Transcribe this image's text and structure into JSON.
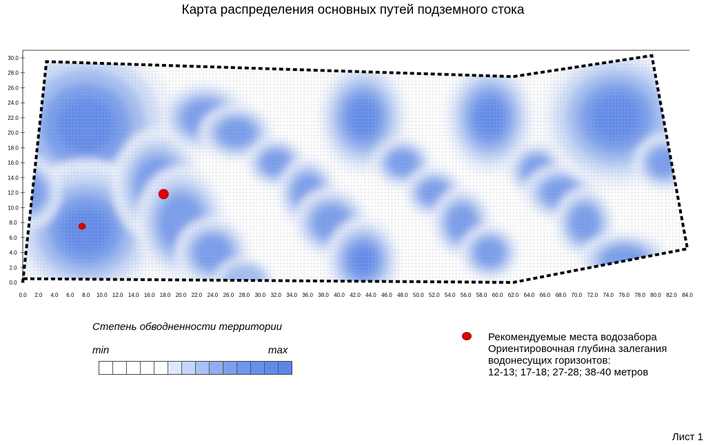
{
  "title": "Карта распределения основных путей подземного стока",
  "map": {
    "x_ticks": [
      "0.0",
      "2.0",
      "4.0",
      "6.0",
      "8.0",
      "10.0",
      "12.0",
      "14.0",
      "16.0",
      "18.0",
      "20.0",
      "22.0",
      "24.0",
      "26.0",
      "28.0",
      "30.0",
      "32.0",
      "34.0",
      "36.0",
      "38.0",
      "40.0",
      "42.0",
      "44.0",
      "46.0",
      "48.0",
      "50.0",
      "52.0",
      "54.0",
      "56.0",
      "58.0",
      "60.0",
      "62.0",
      "64.0",
      "66.0",
      "68.0",
      "70.0",
      "72.0",
      "74.0",
      "76.0",
      "78.0",
      "80.0",
      "82.0",
      "84.0"
    ],
    "y_ticks": [
      "0.0",
      "2.0",
      "4.0",
      "6.0",
      "8.0",
      "10.0",
      "12.0",
      "14.0",
      "16.0",
      "18.0",
      "20.0",
      "22.0",
      "24.0",
      "26.0",
      "28.0",
      "30.0"
    ],
    "x_range": [
      0,
      84
    ],
    "y_range": [
      0,
      30
    ],
    "boundary": [
      [
        0,
        0
      ],
      [
        3,
        29.5
      ],
      [
        62,
        27.5
      ],
      [
        79.5,
        30.3
      ],
      [
        84,
        4.5
      ],
      [
        62,
        0
      ],
      [
        0,
        0.5
      ]
    ],
    "wells": [
      {
        "x": 7.5,
        "y": 7.5,
        "size": "small"
      },
      {
        "x": 17.8,
        "y": 11.8,
        "size": "large"
      }
    ],
    "water_zones": [
      {
        "x": 8,
        "y": 21,
        "rx": 6,
        "ry": 6,
        "level": 4
      },
      {
        "x": 8,
        "y": 7,
        "rx": 5,
        "ry": 5,
        "level": 4
      },
      {
        "x": 1,
        "y": 12,
        "rx": 2,
        "ry": 2.5,
        "level": 3
      },
      {
        "x": 17,
        "y": 13,
        "rx": 3,
        "ry": 4,
        "level": 3
      },
      {
        "x": 20,
        "y": 8,
        "rx": 3,
        "ry": 4,
        "level": 3
      },
      {
        "x": 24,
        "y": 4,
        "rx": 2.5,
        "ry": 2.5,
        "level": 3
      },
      {
        "x": 23,
        "y": 22,
        "rx": 3,
        "ry": 2.5,
        "level": 3
      },
      {
        "x": 27,
        "y": 20,
        "rx": 2.5,
        "ry": 2,
        "level": 3
      },
      {
        "x": 32,
        "y": 16,
        "rx": 2,
        "ry": 1.8,
        "level": 3
      },
      {
        "x": 36,
        "y": 12,
        "rx": 2,
        "ry": 2.5,
        "level": 3
      },
      {
        "x": 39,
        "y": 8,
        "rx": 2.5,
        "ry": 2.5,
        "level": 3
      },
      {
        "x": 43,
        "y": 3,
        "rx": 2.5,
        "ry": 3,
        "level": 4
      },
      {
        "x": 43,
        "y": 22,
        "rx": 3,
        "ry": 4,
        "level": 4
      },
      {
        "x": 48,
        "y": 16,
        "rx": 2,
        "ry": 1.8,
        "level": 3
      },
      {
        "x": 52,
        "y": 12,
        "rx": 2,
        "ry": 1.8,
        "level": 3
      },
      {
        "x": 55.5,
        "y": 8,
        "rx": 2,
        "ry": 2.5,
        "level": 3
      },
      {
        "x": 59,
        "y": 4,
        "rx": 2,
        "ry": 2,
        "level": 3
      },
      {
        "x": 59,
        "y": 22,
        "rx": 3,
        "ry": 4,
        "level": 4
      },
      {
        "x": 65,
        "y": 15,
        "rx": 2,
        "ry": 2,
        "level": 3
      },
      {
        "x": 68,
        "y": 12,
        "rx": 2.5,
        "ry": 2,
        "level": 3
      },
      {
        "x": 71,
        "y": 8,
        "rx": 2,
        "ry": 2.5,
        "level": 3
      },
      {
        "x": 75,
        "y": 22,
        "rx": 5,
        "ry": 5,
        "level": 4
      },
      {
        "x": 81,
        "y": 16,
        "rx": 2,
        "ry": 2,
        "level": 3
      },
      {
        "x": 76,
        "y": 3,
        "rx": 3,
        "ry": 2,
        "level": 3
      },
      {
        "x": 28,
        "y": 0.5,
        "rx": 2,
        "ry": 1.5,
        "level": 2
      }
    ]
  },
  "scale": {
    "title": "Степень обводненности территории",
    "min_label": "min",
    "max_label": "max",
    "colors": [
      "#ffffff",
      "#ffffff",
      "#ffffff",
      "#ffffff",
      "#ffffff",
      "#dfe8fb",
      "#c6d6f8",
      "#a9c1f4",
      "#8fadf0",
      "#7c9fee",
      "#6f95ec",
      "#6690eb",
      "#5f8ae9",
      "#5a86e8"
    ]
  },
  "legend": {
    "well_color": "#e00000",
    "lines": [
      "Рекомендуемые места водозабора",
      "Ориентировочная глубина залегания",
      "водонесущих горизонтов:",
      "12-13; 17-18; 27-28; 38-40 метров"
    ]
  },
  "sheet_label": "Лист 1"
}
